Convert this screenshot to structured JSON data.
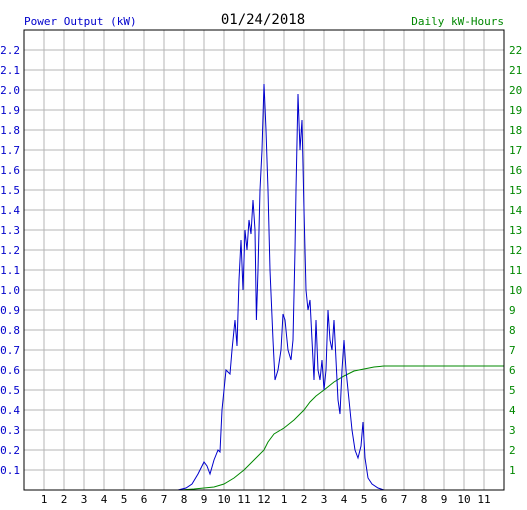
{
  "chart_data": {
    "type": "line",
    "date": "01/24/2018",
    "left_axis_label": "Power Output (kW)",
    "right_axis_label": "Daily kW-Hours",
    "x_range_hours": [
      0,
      24
    ],
    "x_ticks": [
      "1",
      "2",
      "3",
      "4",
      "5",
      "6",
      "7",
      "8",
      "9",
      "10",
      "11",
      "12",
      "1",
      "2",
      "3",
      "4",
      "5",
      "6",
      "7",
      "8",
      "9",
      "10",
      "11"
    ],
    "y_left_range": [
      0,
      2.3
    ],
    "y_left_ticks": [
      "0.1",
      "0.2",
      "0.3",
      "0.4",
      "0.5",
      "0.6",
      "0.7",
      "0.8",
      "0.9",
      "1.0",
      "1.1",
      "1.2",
      "1.3",
      "1.4",
      "1.5",
      "1.6",
      "1.7",
      "1.8",
      "1.9",
      "2.0",
      "2.1",
      "2.2"
    ],
    "y_right_range": [
      0,
      23
    ],
    "y_right_ticks": [
      "1",
      "2",
      "3",
      "4",
      "5",
      "6",
      "7",
      "8",
      "9",
      "10",
      "11",
      "12",
      "13",
      "14",
      "15",
      "16",
      "17",
      "18",
      "19",
      "20",
      "21",
      "22"
    ],
    "grid": true,
    "colors": {
      "power": "#0000cc",
      "energy": "#008800",
      "grid": "#b4b4b4",
      "frame": "#000000"
    },
    "series": [
      {
        "axis": "left",
        "color": "#0000cc",
        "points": [
          [
            0,
            0
          ],
          [
            7.7,
            0
          ],
          [
            8.1,
            0.01
          ],
          [
            8.4,
            0.03
          ],
          [
            8.7,
            0.08
          ],
          [
            9.0,
            0.14
          ],
          [
            9.15,
            0.12
          ],
          [
            9.3,
            0.08
          ],
          [
            9.5,
            0.15
          ],
          [
            9.7,
            0.2
          ],
          [
            9.8,
            0.19
          ],
          [
            9.9,
            0.4
          ],
          [
            10.1,
            0.6
          ],
          [
            10.3,
            0.58
          ],
          [
            10.4,
            0.7
          ],
          [
            10.55,
            0.85
          ],
          [
            10.65,
            0.72
          ],
          [
            10.75,
            1.05
          ],
          [
            10.85,
            1.25
          ],
          [
            10.95,
            1.0
          ],
          [
            11.05,
            1.3
          ],
          [
            11.15,
            1.2
          ],
          [
            11.25,
            1.35
          ],
          [
            11.35,
            1.28
          ],
          [
            11.45,
            1.45
          ],
          [
            11.55,
            1.3
          ],
          [
            11.62,
            0.85
          ],
          [
            11.7,
            1.1
          ],
          [
            11.8,
            1.5
          ],
          [
            11.9,
            1.7
          ],
          [
            12.0,
            2.03
          ],
          [
            12.1,
            1.8
          ],
          [
            12.2,
            1.5
          ],
          [
            12.3,
            1.1
          ],
          [
            12.45,
            0.75
          ],
          [
            12.55,
            0.55
          ],
          [
            12.7,
            0.6
          ],
          [
            12.85,
            0.7
          ],
          [
            12.95,
            0.88
          ],
          [
            13.05,
            0.85
          ],
          [
            13.2,
            0.7
          ],
          [
            13.35,
            0.65
          ],
          [
            13.45,
            0.75
          ],
          [
            13.55,
            1.2
          ],
          [
            13.6,
            1.5
          ],
          [
            13.7,
            1.98
          ],
          [
            13.8,
            1.7
          ],
          [
            13.9,
            1.85
          ],
          [
            14.0,
            1.4
          ],
          [
            14.1,
            1.0
          ],
          [
            14.2,
            0.9
          ],
          [
            14.3,
            0.95
          ],
          [
            14.4,
            0.75
          ],
          [
            14.5,
            0.55
          ],
          [
            14.6,
            0.85
          ],
          [
            14.7,
            0.6
          ],
          [
            14.8,
            0.55
          ],
          [
            14.9,
            0.65
          ],
          [
            15.0,
            0.5
          ],
          [
            15.1,
            0.6
          ],
          [
            15.2,
            0.9
          ],
          [
            15.3,
            0.75
          ],
          [
            15.4,
            0.7
          ],
          [
            15.5,
            0.85
          ],
          [
            15.6,
            0.65
          ],
          [
            15.7,
            0.45
          ],
          [
            15.8,
            0.38
          ],
          [
            15.9,
            0.6
          ],
          [
            16.0,
            0.75
          ],
          [
            16.1,
            0.6
          ],
          [
            16.25,
            0.45
          ],
          [
            16.4,
            0.3
          ],
          [
            16.55,
            0.2
          ],
          [
            16.7,
            0.16
          ],
          [
            16.85,
            0.22
          ],
          [
            16.95,
            0.34
          ],
          [
            17.05,
            0.16
          ],
          [
            17.2,
            0.06
          ],
          [
            17.4,
            0.03
          ],
          [
            17.7,
            0.01
          ],
          [
            18.0,
            0
          ],
          [
            24,
            0
          ]
        ]
      },
      {
        "axis": "right",
        "color": "#008800",
        "points": [
          [
            0,
            0
          ],
          [
            7.8,
            0
          ],
          [
            8.5,
            0.05
          ],
          [
            9.0,
            0.1
          ],
          [
            9.5,
            0.15
          ],
          [
            10.0,
            0.3
          ],
          [
            10.5,
            0.6
          ],
          [
            11.0,
            1.0
          ],
          [
            11.5,
            1.5
          ],
          [
            12.0,
            2.0
          ],
          [
            12.2,
            2.4
          ],
          [
            12.5,
            2.8
          ],
          [
            13.0,
            3.1
          ],
          [
            13.5,
            3.5
          ],
          [
            14.0,
            4.0
          ],
          [
            14.3,
            4.4
          ],
          [
            14.6,
            4.7
          ],
          [
            15.0,
            5.0
          ],
          [
            15.5,
            5.4
          ],
          [
            16.0,
            5.7
          ],
          [
            16.5,
            5.95
          ],
          [
            17.0,
            6.05
          ],
          [
            17.5,
            6.15
          ],
          [
            18.0,
            6.2
          ],
          [
            24,
            6.2
          ]
        ]
      }
    ]
  }
}
